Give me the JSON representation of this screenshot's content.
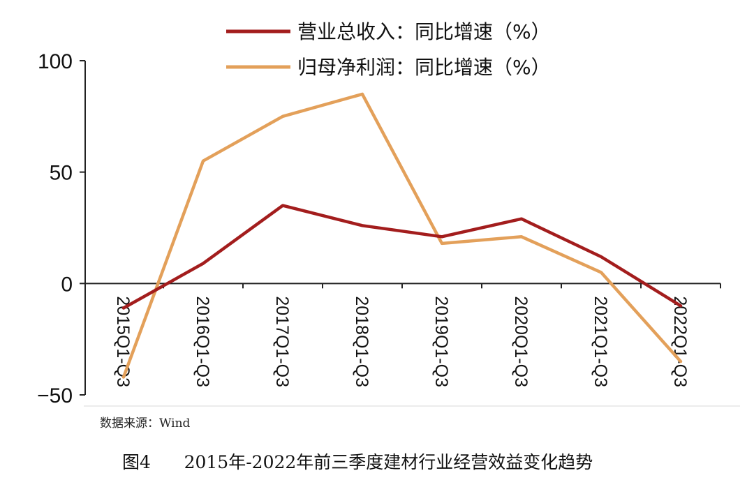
{
  "chart_data": {
    "type": "line",
    "categories": [
      "2015Q1-Q3",
      "2016Q1-Q3",
      "2017Q1-Q3",
      "2018Q1-Q3",
      "2019Q1-Q3",
      "2020Q1-Q3",
      "2021Q1-Q3",
      "2022Q1-Q3"
    ],
    "series": [
      {
        "name": "营业总收入：同比增速（%）",
        "color": "#a31d1d",
        "values": [
          -11,
          9,
          35,
          26,
          21,
          29,
          12,
          -10
        ]
      },
      {
        "name": "归母净利润：同比增速（%）",
        "color": "#e3a05a",
        "values": [
          -42,
          55,
          75,
          85,
          18,
          21,
          5,
          -35
        ]
      }
    ],
    "ylim": [
      -50,
      100
    ],
    "yticks": [
      -50,
      0,
      50,
      100
    ],
    "ytick_labels": [
      "−50",
      "0",
      "50",
      "100"
    ],
    "grid": false,
    "legend_position": "top"
  },
  "source": "数据来源：Wind",
  "caption": "图4      2015年-2022年前三季度建材行业经营效益变化趋势"
}
